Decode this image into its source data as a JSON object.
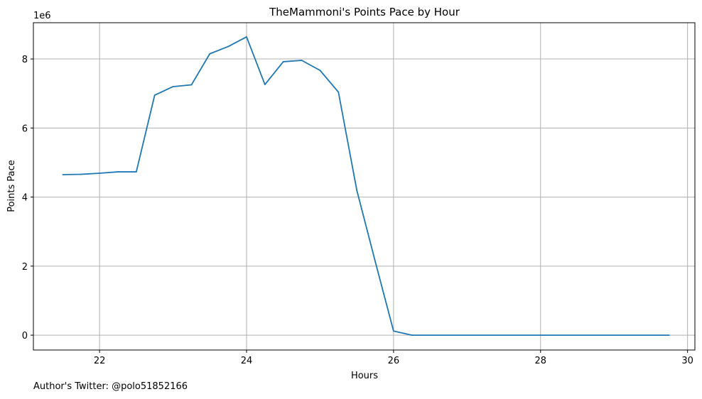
{
  "colors": {
    "line": "#1f77b4",
    "grid": "#b0b0b0",
    "axis": "#000000",
    "background": "#ffffff"
  },
  "footer": {
    "text": "Author's Twitter: @polo51852166"
  },
  "chart_data": {
    "type": "line",
    "title": "TheMammoni's Points Pace by Hour",
    "xlabel": "Hours",
    "ylabel": "Points Pace",
    "y_offset_label": "1e6",
    "xlim": [
      21.1,
      30.1
    ],
    "ylim": [
      -0.43,
      9.05
    ],
    "x_ticks": [
      22,
      24,
      26,
      28,
      30
    ],
    "y_ticks": [
      0,
      2,
      4,
      6,
      8
    ],
    "grid": true,
    "series": [
      {
        "x": [
          21.5,
          21.75,
          22.0,
          22.25,
          22.5,
          22.75,
          23.0,
          23.25,
          23.5,
          23.75,
          24.0,
          24.25,
          24.5,
          24.75,
          25.0,
          25.25,
          25.5,
          25.75,
          26.0,
          26.25,
          26.5,
          26.75,
          27.0,
          27.25,
          27.5,
          27.75,
          28.0,
          28.25,
          28.5,
          28.75,
          29.0,
          29.25,
          29.5,
          29.75
        ],
        "values": [
          4.65,
          4.66,
          4.69,
          4.73,
          4.73,
          6.95,
          7.2,
          7.25,
          8.15,
          8.36,
          8.64,
          7.26,
          7.92,
          7.96,
          7.67,
          7.04,
          4.2,
          2.14,
          0.12,
          0.0,
          0.0,
          0.0,
          0.0,
          0.0,
          0.0,
          0.0,
          0.0,
          0.0,
          0.0,
          0.0,
          0.0,
          0.0,
          0.0,
          0.0
        ]
      }
    ]
  }
}
